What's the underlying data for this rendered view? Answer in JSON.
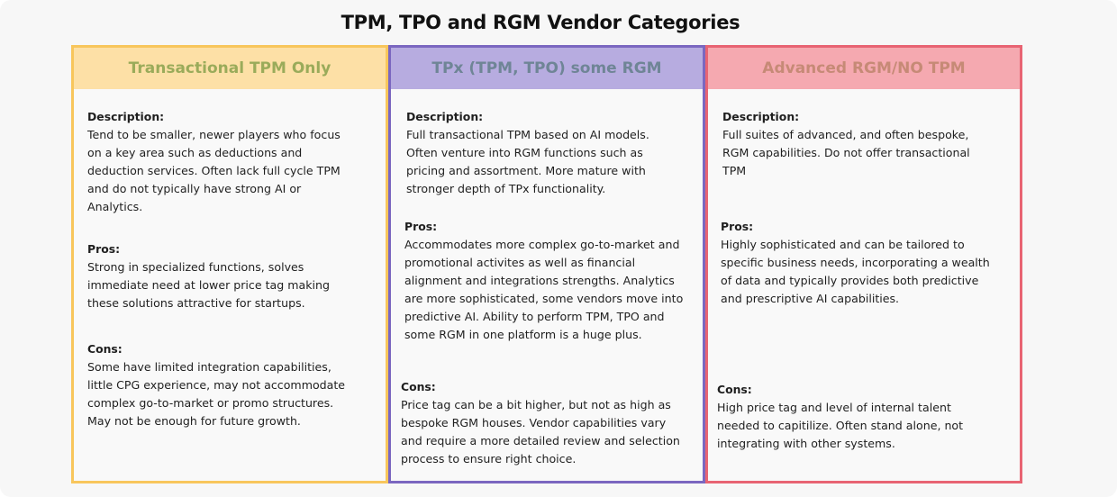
{
  "title": "TPM, TPO and RGM Vendor Categories",
  "columns": [
    {
      "header": "Transactional TPM Only",
      "description_label": "Description:",
      "description": "Tend to be smaller, newer players who focus on a key area such as deductions and deduction services. Often lack full cycle TPM and do not typically have strong AI or Analytics.",
      "pros_label": "Pros:",
      "pros": "Strong in specialized functions, solves immediate need at lower price tag making these solutions attractive for startups.",
      "cons_label": "Cons:",
      "cons": "Some have limited integration capabilities, little CPG experience, may not accommodate complex go-to-market or promo structures. May not be enough for future growth."
    },
    {
      "header": "TPx (TPM, TPO) some RGM",
      "description_label": "Description:",
      "description": "Full transactional TPM based on AI models. Often venture into RGM functions such as pricing and assortment. More mature with stronger depth of TPx functionality.",
      "pros_label": "Pros:",
      "pros": "Accommodates more complex go-to-market and promotional activites as well as financial alignment and integrations strengths. Analytics are more sophisticated, some vendors move into predictive AI. Ability to perform TPM, TPO and some RGM in one platform is a huge plus.",
      "cons_label": "Cons:",
      "cons": "Price tag can be a bit higher, but not as high as bespoke RGM houses. Vendor capabilities vary and require a more detailed review and selection process to ensure right choice."
    },
    {
      "header": "Advanced RGM/NO TPM",
      "description_label": "Description:",
      "description": "Full suites of advanced, and often bespoke, RGM capabilities. Do not offer transactional TPM",
      "pros_label": "Pros:",
      "pros": "Highly sophisticated and can be tailored to specific business needs, incorporating a wealth of data and typically provides both predictive and prescriptive AI capabilities.",
      "cons_label": "Cons:",
      "cons": "High price tag and level of internal talent needed to capitilize. Often stand alone, not integrating with other systems."
    }
  ]
}
